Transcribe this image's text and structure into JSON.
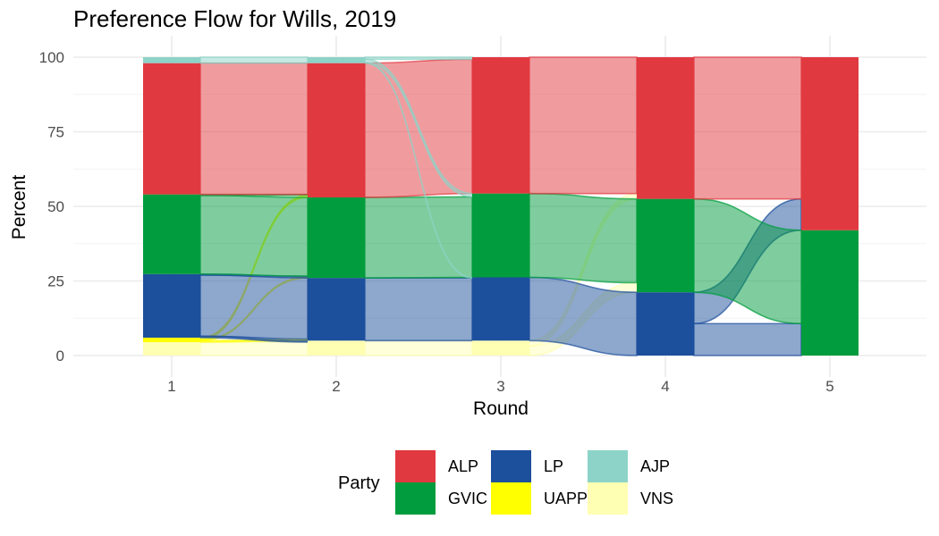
{
  "chart_data": {
    "type": "alluvial",
    "title": "Preference Flow for Wills, 2019",
    "xlabel": "Round",
    "ylabel": "Percent",
    "ylim": [
      0,
      100
    ],
    "x_ticks": [
      "1",
      "2",
      "3",
      "4",
      "5"
    ],
    "y_ticks": [
      0,
      25,
      50,
      75,
      100
    ],
    "grid": true,
    "legend_position": "bottom",
    "legend_title": "Party",
    "parties": [
      "ALP",
      "LP",
      "AJP",
      "GVIC",
      "UAPP",
      "VNS"
    ],
    "stack_order": [
      "VNS",
      "UAPP",
      "LP",
      "GVIC",
      "ALP",
      "AJP"
    ],
    "colors": {
      "ALP": "#E13940",
      "GVIC": "#009C3D",
      "LP": "#1C4F9C",
      "UAPP": "#FFFF00",
      "AJP": "#8DD3C7",
      "VNS": "#FFFFB3"
    },
    "rounds": [
      {
        "round": 1,
        "shares": {
          "VNS": 4.5,
          "UAPP": 1.5,
          "LP": 21.3,
          "GVIC": 26.7,
          "ALP": 44.0,
          "AJP": 2.0
        }
      },
      {
        "round": 2,
        "shares": {
          "VNS": 5.0,
          "UAPP": 0,
          "LP": 21.0,
          "GVIC": 27.0,
          "ALP": 45.0,
          "AJP": 2.0
        }
      },
      {
        "round": 3,
        "shares": {
          "VNS": 5.0,
          "UAPP": 0,
          "LP": 21.2,
          "GVIC": 28.1,
          "ALP": 45.7,
          "AJP": 0
        }
      },
      {
        "round": 4,
        "shares": {
          "VNS": 0,
          "UAPP": 0,
          "LP": 21.2,
          "GVIC": 31.3,
          "ALP": 47.5,
          "AJP": 0
        }
      },
      {
        "round": 5,
        "shares": {
          "VNS": 0,
          "UAPP": 0,
          "LP": 0,
          "GVIC": 42.0,
          "ALP": 58.0,
          "AJP": 0
        }
      }
    ],
    "flows": [
      {
        "from_round": 1,
        "from": "VNS",
        "to": "VNS",
        "value": 4.5
      },
      {
        "from_round": 1,
        "from": "UAPP",
        "to": "LP",
        "value": 0.5
      },
      {
        "from_round": 1,
        "from": "UAPP",
        "to": "GVIC",
        "value": 0.3
      },
      {
        "from_round": 1,
        "from": "UAPP",
        "to": "ALP",
        "value": 0.7
      },
      {
        "from_round": 1,
        "from": "LP",
        "to": "LP",
        "value": 20.5
      },
      {
        "from_round": 1,
        "from": "LP",
        "to": "VNS",
        "value": 0.5
      },
      {
        "from_round": 1,
        "from": "LP",
        "to": "GVIC",
        "value": 0.3
      },
      {
        "from_round": 1,
        "from": "GVIC",
        "to": "GVIC",
        "value": 26.4
      },
      {
        "from_round": 1,
        "from": "GVIC",
        "to": "ALP",
        "value": 0.3
      },
      {
        "from_round": 1,
        "from": "ALP",
        "to": "ALP",
        "value": 44.0
      },
      {
        "from_round": 1,
        "from": "AJP",
        "to": "AJP",
        "value": 2.0
      },
      {
        "from_round": 2,
        "from": "VNS",
        "to": "VNS",
        "value": 5.0
      },
      {
        "from_round": 2,
        "from": "LP",
        "to": "LP",
        "value": 21.0
      },
      {
        "from_round": 2,
        "from": "GVIC",
        "to": "GVIC",
        "value": 27.0
      },
      {
        "from_round": 2,
        "from": "ALP",
        "to": "ALP",
        "value": 45.0
      },
      {
        "from_round": 2,
        "from": "AJP",
        "to": "LP",
        "value": 0.2
      },
      {
        "from_round": 2,
        "from": "AJP",
        "to": "GVIC",
        "value": 1.1
      },
      {
        "from_round": 2,
        "from": "AJP",
        "to": "ALP",
        "value": 0.7
      },
      {
        "from_round": 3,
        "from": "VNS",
        "to": "LP",
        "value": 0
      },
      {
        "from_round": 3,
        "from": "VNS",
        "to": "GVIC",
        "value": 3.2
      },
      {
        "from_round": 3,
        "from": "VNS",
        "to": "ALP",
        "value": 1.8
      },
      {
        "from_round": 3,
        "from": "LP",
        "to": "LP",
        "value": 21.2
      },
      {
        "from_round": 3,
        "from": "GVIC",
        "to": "GVIC",
        "value": 28.1
      },
      {
        "from_round": 3,
        "from": "ALP",
        "to": "ALP",
        "value": 45.7
      },
      {
        "from_round": 4,
        "from": "LP",
        "to": "GVIC",
        "value": 10.7
      },
      {
        "from_round": 4,
        "from": "LP",
        "to": "ALP",
        "value": 10.5
      },
      {
        "from_round": 4,
        "from": "GVIC",
        "to": "GVIC",
        "value": 31.3
      },
      {
        "from_round": 4,
        "from": "ALP",
        "to": "ALP",
        "value": 47.5
      }
    ]
  },
  "legend": {
    "title": "Party",
    "items": [
      {
        "label": "ALP",
        "color": "#E13940"
      },
      {
        "label": "GVIC",
        "color": "#009C3D"
      },
      {
        "label": "LP",
        "color": "#1C4F9C"
      },
      {
        "label": "UAPP",
        "color": "#FFFF00"
      },
      {
        "label": "AJP",
        "color": "#8DD3C7"
      },
      {
        "label": "VNS",
        "color": "#FFFFB3"
      }
    ]
  }
}
